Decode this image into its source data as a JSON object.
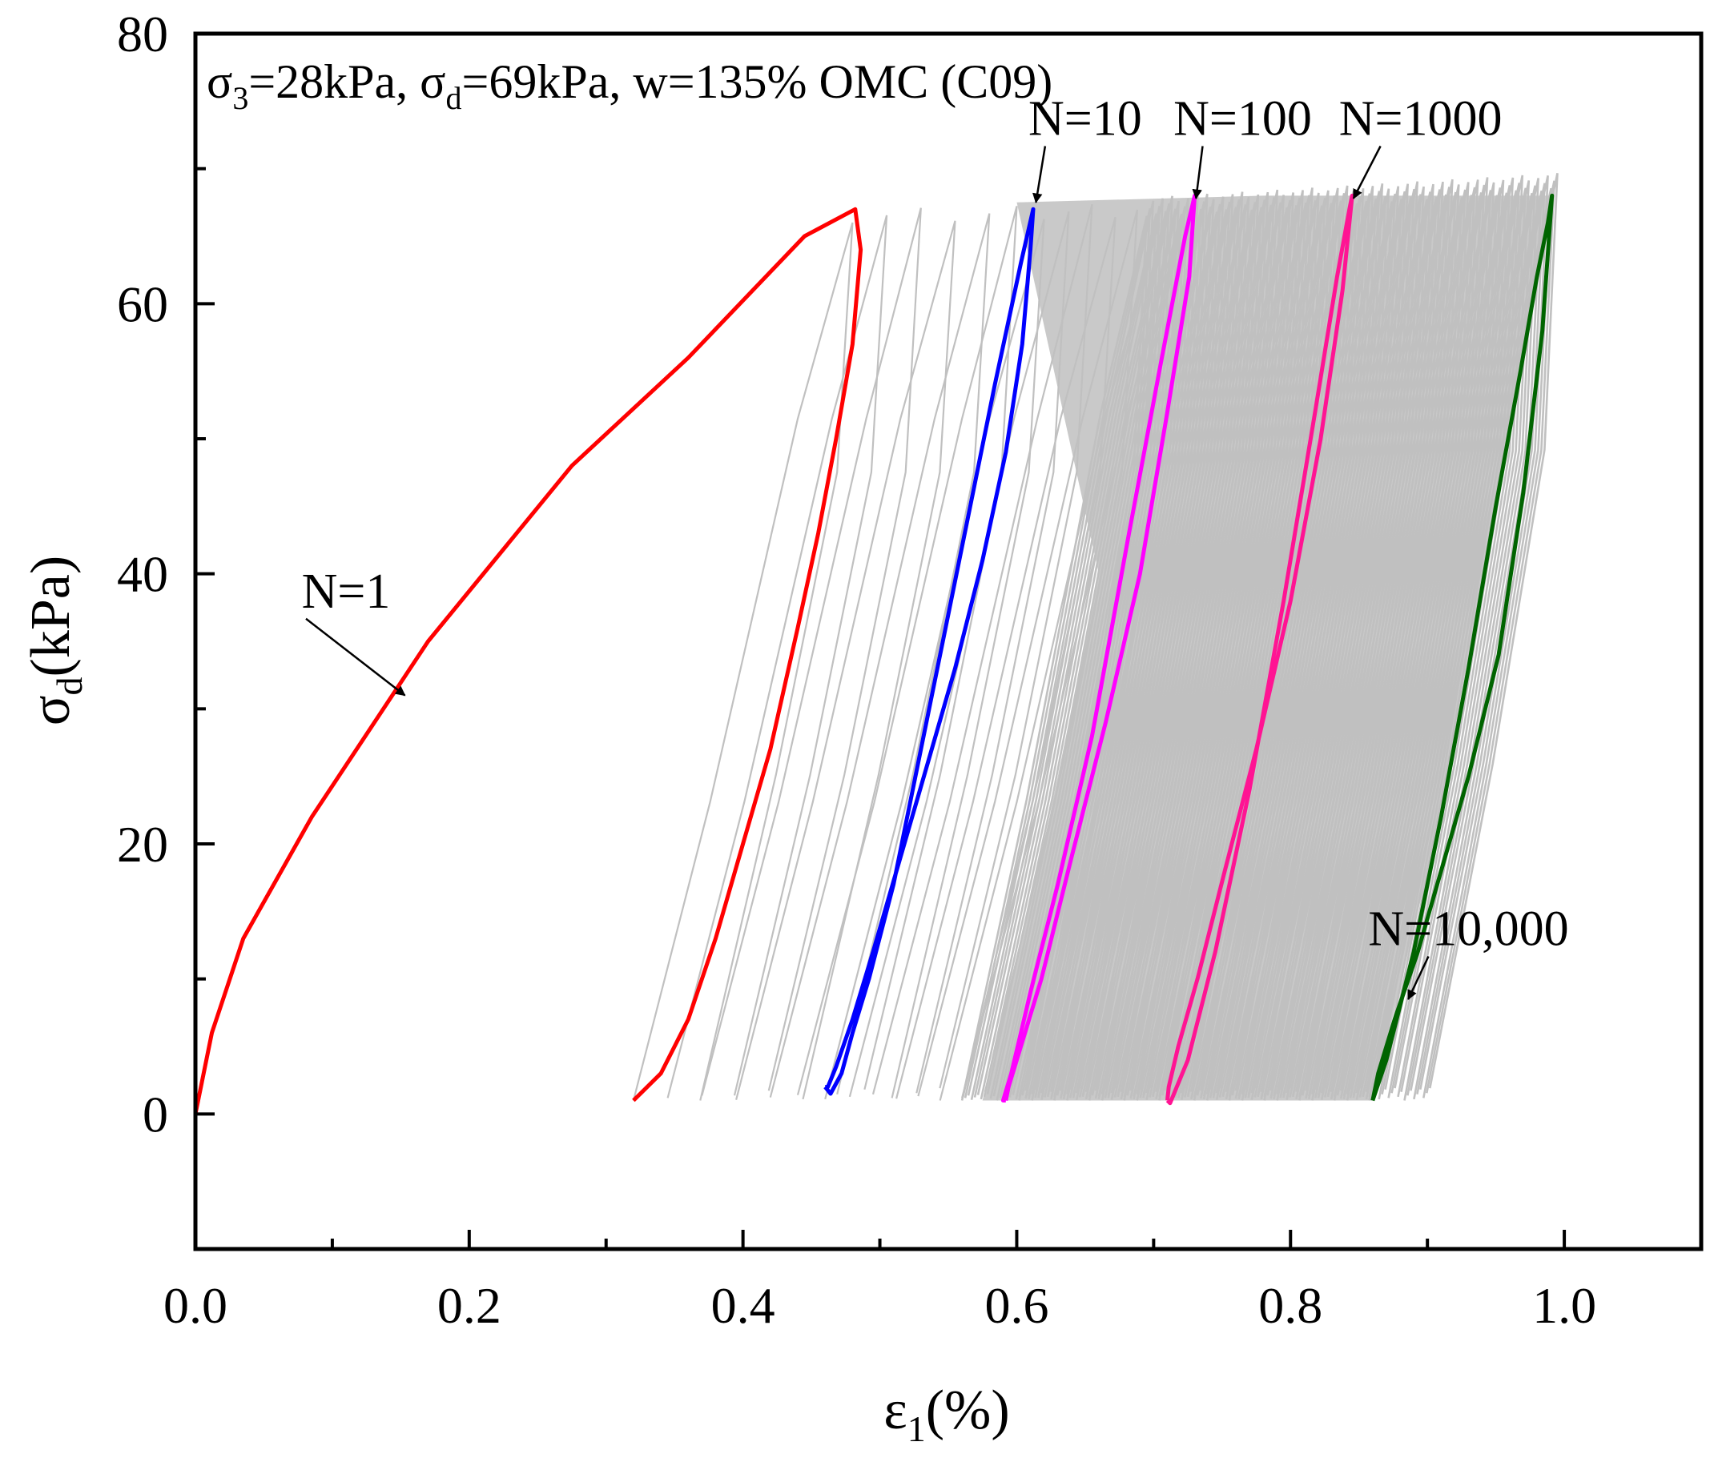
{
  "chart_data": {
    "type": "line",
    "title": "σ3=28kPa, σd=69kPa, w=135% OMC (C09)",
    "title_parts": {
      "s1": "σ",
      "sub1": "3",
      "t1": "=28kPa, σ",
      "sub2": "d",
      "t2": "=69kPa, w=135% OMC (C09)"
    },
    "xlabel": "ε1(%)",
    "xlabel_parts": {
      "sym": "ε",
      "sub": "1",
      "rest": "(%)"
    },
    "ylabel": "σd(kPa)",
    "ylabel_parts": {
      "sym": "σ",
      "sub": "d",
      "rest": "(kPa)"
    },
    "xlim": [
      0.0,
      1.1
    ],
    "ylim": [
      -10,
      80
    ],
    "x_ticks": [
      "0.0",
      "0.2",
      "0.4",
      "0.6",
      "0.8",
      "1.0"
    ],
    "x_tick_values": [
      0.0,
      0.2,
      0.4,
      0.6,
      0.8,
      1.0
    ],
    "x_minor_ticks": [
      0.1,
      0.3,
      0.5,
      0.7,
      0.9
    ],
    "y_ticks": [
      "0",
      "20",
      "40",
      "60",
      "80"
    ],
    "y_tick_values": [
      0,
      20,
      40,
      60,
      80
    ],
    "y_minor_ticks": [
      -10,
      10,
      30,
      50,
      70
    ],
    "grid": false,
    "colors": {
      "gray": "#c0c0c0",
      "n1": "#ff0000",
      "n10": "#0000ff",
      "n100": "#ff00ff",
      "n1000": "#ff1493",
      "n10000": "#006400"
    },
    "gray_cycles": {
      "early_start_x": [
        0.32,
        0.345,
        0.37,
        0.395,
        0.42,
        0.44,
        0.46,
        0.478,
        0.495,
        0.512,
        0.528,
        0.544,
        0.56
      ],
      "early_width": 0.16,
      "peak": 66,
      "dense_range": [
        0.56,
        0.86
      ],
      "dense_width": 0.135,
      "dense_count": 130
    },
    "series": [
      {
        "name": "N=1",
        "color": "#ff0000",
        "x": [
          0.0,
          0.012,
          0.035,
          0.085,
          0.17,
          0.275,
          0.36,
          0.445,
          0.482,
          0.486,
          0.48,
          0.468,
          0.455,
          0.44,
          0.42,
          0.4,
          0.38,
          0.36,
          0.34,
          0.32
        ],
        "y": [
          0,
          6,
          13,
          22,
          35,
          48,
          56,
          65,
          67,
          64,
          57,
          50,
          43,
          36,
          27,
          20,
          13,
          7,
          3,
          1
        ]
      },
      {
        "name": "N=10",
        "color": "#0000ff",
        "x": [
          0.46,
          0.464,
          0.472,
          0.48,
          0.492,
          0.51,
          0.532,
          0.558,
          0.584,
          0.603,
          0.612,
          0.61,
          0.604,
          0.592,
          0.575,
          0.555,
          0.535,
          0.515,
          0.495,
          0.48,
          0.468,
          0.462,
          0.46
        ],
        "y": [
          2,
          1.5,
          3,
          6,
          10,
          17,
          28,
          41,
          54,
          63,
          67,
          64,
          57,
          49,
          41,
          33,
          26,
          19,
          12,
          7,
          3.5,
          2,
          2
        ]
      },
      {
        "name": "N=100",
        "color": "#ff00ff",
        "x": [
          0.592,
          0.59,
          0.596,
          0.61,
          0.63,
          0.655,
          0.682,
          0.706,
          0.723,
          0.73,
          0.726,
          0.71,
          0.69,
          0.665,
          0.64,
          0.618,
          0.603,
          0.594,
          0.592
        ],
        "y": [
          1,
          1,
          3,
          9,
          17,
          28,
          43,
          56,
          65,
          68,
          62,
          52,
          40,
          29,
          19,
          10,
          5,
          2,
          1
        ]
      },
      {
        "name": "N=1000",
        "color": "#ff1493",
        "x": [
          0.71,
          0.712,
          0.725,
          0.745,
          0.77,
          0.795,
          0.818,
          0.834,
          0.843,
          0.845,
          0.838,
          0.822,
          0.8,
          0.775,
          0.752,
          0.732,
          0.718,
          0.711,
          0.71
        ],
        "y": [
          1,
          0.8,
          4,
          12,
          24,
          38,
          52,
          62,
          67,
          68,
          61,
          50,
          38,
          27,
          18,
          10,
          5,
          2,
          1
        ]
      },
      {
        "name": "N=10,000",
        "color": "#006400",
        "x": [
          0.86,
          0.87,
          0.89,
          0.91,
          0.93,
          0.95,
          0.968,
          0.98,
          0.988,
          0.991,
          0.984,
          0.97,
          0.952,
          0.93,
          0.91,
          0.893,
          0.876,
          0.864,
          0.86
        ],
        "y": [
          1,
          4,
          12,
          22,
          33,
          45,
          55,
          62,
          66,
          68,
          58,
          46,
          34,
          25,
          18,
          12,
          7,
          3,
          1
        ]
      }
    ],
    "annotations": [
      {
        "label": "N=1",
        "text_x": 0.11,
        "text_y": 37.5,
        "tip_x": 0.153,
        "tip_y": 31
      },
      {
        "label": "N=10",
        "text_x": 0.65,
        "text_y": 72.5,
        "tip_x": 0.614,
        "tip_y": 67.5
      },
      {
        "label": "N=100",
        "text_x": 0.765,
        "text_y": 72.5,
        "tip_x": 0.731,
        "tip_y": 67.8
      },
      {
        "label": "N=1000",
        "text_x": 0.895,
        "text_y": 72.5,
        "tip_x": 0.846,
        "tip_y": 67.8
      },
      {
        "label": "N=10,000",
        "text_x": 0.93,
        "text_y": 12.5,
        "tip_x": 0.886,
        "tip_y": 8.5
      }
    ]
  }
}
